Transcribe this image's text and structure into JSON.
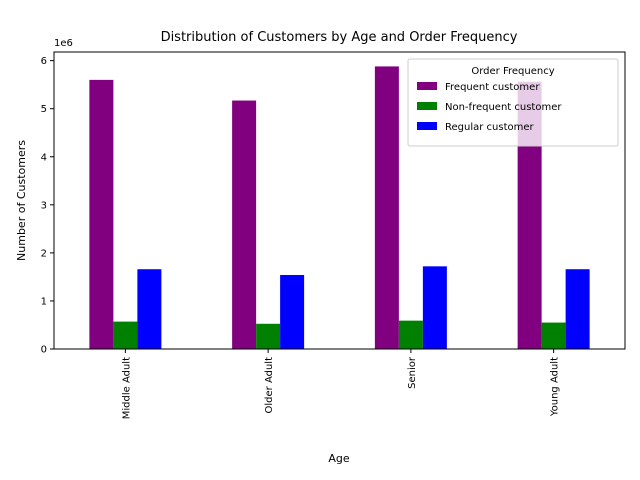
{
  "chart_data": {
    "type": "bar",
    "title": "Distribution of Customers by Age and Order Frequency",
    "xlabel": "Age",
    "ylabel": "Number of Customers",
    "y_offset_label": "1e6",
    "categories": [
      "Middle Adult",
      "Older Adult",
      "Senior",
      "Young Adult"
    ],
    "series": [
      {
        "name": "Frequent customer",
        "color": "#800080",
        "values": [
          5600000,
          5170000,
          5880000,
          5560000
        ]
      },
      {
        "name": "Non-frequent customer",
        "color": "#008000",
        "values": [
          570000,
          525000,
          590000,
          550000
        ]
      },
      {
        "name": "Regular customer",
        "color": "#0000ff",
        "values": [
          1660000,
          1540000,
          1720000,
          1660000
        ]
      }
    ],
    "ylim": [
      0,
      6180000
    ],
    "yticks": [
      0,
      1000000,
      2000000,
      3000000,
      4000000,
      5000000,
      6000000
    ],
    "ytick_labels": [
      "0",
      "1",
      "2",
      "3",
      "4",
      "5",
      "6"
    ],
    "grid": false,
    "legend": {
      "title": "Order Frequency",
      "placement": "top-right"
    }
  }
}
